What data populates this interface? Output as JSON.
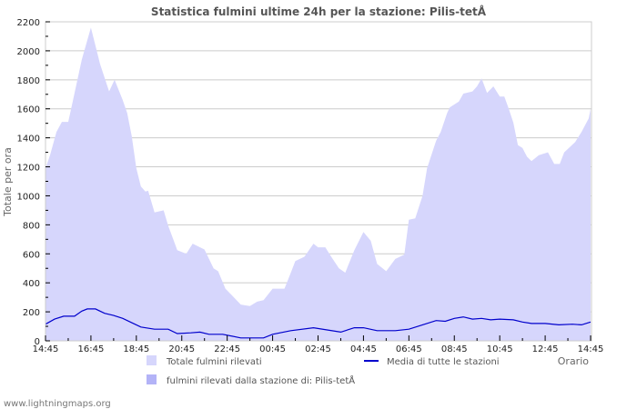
{
  "chart_data": {
    "type": "area",
    "title": "Statistica fulmini ultime 24h per la stazione: Pilis-tetÅ",
    "xlabel": "Orario",
    "ylabel": "Totale per ora",
    "ylim": [
      0,
      2200
    ],
    "yticks": [
      0,
      200,
      400,
      600,
      800,
      1000,
      1200,
      1400,
      1600,
      1800,
      2000,
      2200
    ],
    "xticks": [
      "14:45",
      "16:45",
      "18:45",
      "20:45",
      "22:45",
      "00:45",
      "02:45",
      "04:45",
      "06:45",
      "08:45",
      "10:45",
      "12:45",
      "14:45"
    ],
    "grid": true,
    "legend_position": "bottom",
    "series": [
      {
        "name": "Totale fulmini rilevati",
        "type": "area",
        "color": "#d6d6fc",
        "points": [
          [
            0.0,
            1190
          ],
          [
            0.2,
            1280
          ],
          [
            0.48,
            1440
          ],
          [
            0.72,
            1510
          ],
          [
            1.0,
            1510
          ],
          [
            1.2,
            1650
          ],
          [
            1.6,
            1940
          ],
          [
            2.0,
            2160
          ],
          [
            2.4,
            1910
          ],
          [
            2.8,
            1720
          ],
          [
            3.04,
            1800
          ],
          [
            3.4,
            1660
          ],
          [
            3.6,
            1570
          ],
          [
            3.8,
            1410
          ],
          [
            4.0,
            1190
          ],
          [
            4.2,
            1065
          ],
          [
            4.4,
            1030
          ],
          [
            4.52,
            1035
          ],
          [
            4.8,
            885
          ],
          [
            5.2,
            900
          ],
          [
            5.4,
            795
          ],
          [
            5.8,
            625
          ],
          [
            6.2,
            600
          ],
          [
            6.48,
            670
          ],
          [
            7.0,
            630
          ],
          [
            7.4,
            500
          ],
          [
            7.6,
            480
          ],
          [
            7.92,
            360
          ],
          [
            8.2,
            315
          ],
          [
            8.6,
            250
          ],
          [
            9.0,
            240
          ],
          [
            9.32,
            270
          ],
          [
            9.6,
            280
          ],
          [
            10.0,
            360
          ],
          [
            10.52,
            360
          ],
          [
            10.8,
            470
          ],
          [
            11.0,
            550
          ],
          [
            11.4,
            580
          ],
          [
            11.8,
            670
          ],
          [
            12.0,
            645
          ],
          [
            12.32,
            645
          ],
          [
            12.6,
            575
          ],
          [
            12.92,
            500
          ],
          [
            13.2,
            470
          ],
          [
            13.6,
            625
          ],
          [
            14.0,
            750
          ],
          [
            14.32,
            690
          ],
          [
            14.6,
            530
          ],
          [
            15.0,
            480
          ],
          [
            15.4,
            565
          ],
          [
            15.8,
            595
          ],
          [
            16.0,
            835
          ],
          [
            16.28,
            845
          ],
          [
            16.6,
            1000
          ],
          [
            16.8,
            1190
          ],
          [
            17.2,
            1380
          ],
          [
            17.4,
            1440
          ],
          [
            17.68,
            1570
          ],
          [
            17.8,
            1610
          ],
          [
            18.2,
            1650
          ],
          [
            18.4,
            1705
          ],
          [
            18.8,
            1720
          ],
          [
            19.0,
            1755
          ],
          [
            19.2,
            1810
          ],
          [
            19.44,
            1710
          ],
          [
            19.72,
            1755
          ],
          [
            20.0,
            1685
          ],
          [
            20.2,
            1685
          ],
          [
            20.4,
            1600
          ],
          [
            20.6,
            1505
          ],
          [
            20.8,
            1350
          ],
          [
            21.0,
            1330
          ],
          [
            21.2,
            1270
          ],
          [
            21.4,
            1240
          ],
          [
            21.72,
            1280
          ],
          [
            22.12,
            1300
          ],
          [
            22.4,
            1220
          ],
          [
            22.64,
            1220
          ],
          [
            22.84,
            1300
          ],
          [
            23.32,
            1370
          ],
          [
            23.6,
            1440
          ],
          [
            23.92,
            1535
          ],
          [
            24.0,
            1600
          ],
          [
            24.0,
            1690
          ]
        ]
      },
      {
        "name": "fulmini rilevati dalla stazione di: Pilis-tetÅ",
        "type": "area",
        "color": "#b3b3f7",
        "points": []
      },
      {
        "name": "Media di tutte le stazioni",
        "type": "line",
        "color": "#0000cc",
        "points": [
          [
            0.0,
            115
          ],
          [
            0.4,
            150
          ],
          [
            0.8,
            170
          ],
          [
            1.28,
            170
          ],
          [
            1.6,
            205
          ],
          [
            1.84,
            220
          ],
          [
            2.2,
            220
          ],
          [
            2.6,
            190
          ],
          [
            3.0,
            175
          ],
          [
            3.4,
            155
          ],
          [
            3.8,
            125
          ],
          [
            4.2,
            95
          ],
          [
            4.8,
            80
          ],
          [
            5.4,
            80
          ],
          [
            5.8,
            50
          ],
          [
            6.4,
            55
          ],
          [
            6.8,
            60
          ],
          [
            7.2,
            45
          ],
          [
            7.8,
            45
          ],
          [
            8.6,
            20
          ],
          [
            9.6,
            20
          ],
          [
            10.0,
            45
          ],
          [
            10.8,
            70
          ],
          [
            11.8,
            90
          ],
          [
            12.4,
            75
          ],
          [
            13.0,
            60
          ],
          [
            13.6,
            90
          ],
          [
            14.0,
            90
          ],
          [
            14.6,
            70
          ],
          [
            15.4,
            70
          ],
          [
            16.0,
            80
          ],
          [
            16.6,
            110
          ],
          [
            17.2,
            140
          ],
          [
            17.6,
            135
          ],
          [
            18.0,
            155
          ],
          [
            18.4,
            165
          ],
          [
            18.8,
            150
          ],
          [
            19.2,
            155
          ],
          [
            19.6,
            145
          ],
          [
            20.0,
            150
          ],
          [
            20.6,
            145
          ],
          [
            21.0,
            130
          ],
          [
            21.4,
            120
          ],
          [
            22.0,
            120
          ],
          [
            22.6,
            110
          ],
          [
            23.2,
            115
          ],
          [
            23.6,
            110
          ],
          [
            24.0,
            130
          ]
        ]
      }
    ]
  },
  "legend": {
    "total": "Totale fulmini rilevati",
    "station": "fulmini rilevati dalla stazione di: Pilis-tetÅ",
    "average": "Media di tutte le stazioni"
  },
  "credit": "www.lightningmaps.org"
}
